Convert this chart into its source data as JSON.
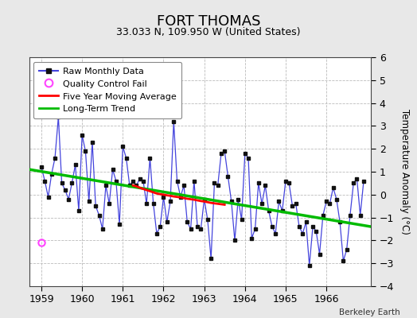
{
  "title": "FORT THOMAS",
  "subtitle": "33.033 N, 109.950 W (United States)",
  "ylabel": "Temperature Anomaly (°C)",
  "credit": "Berkeley Earth",
  "xlim": [
    1958.7,
    1967.1
  ],
  "ylim": [
    -4,
    6
  ],
  "yticks": [
    -4,
    -3,
    -2,
    -1,
    0,
    1,
    2,
    3,
    4,
    5,
    6
  ],
  "xticks": [
    1959,
    1960,
    1961,
    1962,
    1963,
    1964,
    1965,
    1966
  ],
  "bg_color": "#e8e8e8",
  "plot_bg": "#ffffff",
  "raw_color": "#4444dd",
  "raw_marker_color": "#111111",
  "moving_avg_color": "#ff0000",
  "trend_color": "#00bb00",
  "qc_fail_color": "#ff44ff",
  "raw_monthly_x": [
    1959.0,
    1959.083,
    1959.167,
    1959.25,
    1959.333,
    1959.417,
    1959.5,
    1959.583,
    1959.667,
    1959.75,
    1959.833,
    1959.917,
    1960.0,
    1960.083,
    1960.167,
    1960.25,
    1960.333,
    1960.417,
    1960.5,
    1960.583,
    1960.667,
    1960.75,
    1960.833,
    1960.917,
    1961.0,
    1961.083,
    1961.167,
    1961.25,
    1961.333,
    1961.417,
    1961.5,
    1961.583,
    1961.667,
    1961.75,
    1961.833,
    1961.917,
    1962.0,
    1962.083,
    1962.167,
    1962.25,
    1962.333,
    1962.417,
    1962.5,
    1962.583,
    1962.667,
    1962.75,
    1962.833,
    1962.917,
    1963.0,
    1963.083,
    1963.167,
    1963.25,
    1963.333,
    1963.417,
    1963.5,
    1963.583,
    1963.667,
    1963.75,
    1963.833,
    1963.917,
    1964.0,
    1964.083,
    1964.167,
    1964.25,
    1964.333,
    1964.417,
    1964.5,
    1964.583,
    1964.667,
    1964.75,
    1964.833,
    1964.917,
    1965.0,
    1965.083,
    1965.167,
    1965.25,
    1965.333,
    1965.417,
    1965.5,
    1965.583,
    1965.667,
    1965.75,
    1965.833,
    1965.917,
    1966.0,
    1966.083,
    1966.167,
    1966.25,
    1966.333,
    1966.417,
    1966.5,
    1966.583,
    1966.667,
    1966.75,
    1966.833,
    1966.917
  ],
  "raw_monthly_y": [
    1.2,
    0.6,
    -0.1,
    0.9,
    1.6,
    3.4,
    0.5,
    0.2,
    -0.2,
    0.5,
    1.3,
    -0.7,
    2.6,
    1.9,
    -0.3,
    2.3,
    -0.5,
    -0.9,
    -1.5,
    0.4,
    -0.4,
    1.1,
    0.6,
    -1.3,
    2.1,
    1.6,
    0.4,
    0.6,
    0.4,
    0.7,
    0.6,
    -0.4,
    1.6,
    -0.4,
    -1.7,
    -1.4,
    -0.1,
    -1.2,
    -0.3,
    3.2,
    0.6,
    -0.1,
    0.4,
    -1.2,
    -1.5,
    0.6,
    -1.4,
    -1.5,
    -0.2,
    -1.1,
    -2.8,
    0.5,
    0.4,
    1.8,
    1.9,
    0.8,
    -0.3,
    -2.0,
    -0.2,
    -1.1,
    1.8,
    1.6,
    -1.9,
    -1.5,
    0.5,
    -0.4,
    0.4,
    -0.7,
    -1.4,
    -1.7,
    -0.3,
    -0.7,
    0.6,
    0.5,
    -0.5,
    -0.4,
    -1.4,
    -1.7,
    -1.2,
    -3.1,
    -1.4,
    -1.6,
    -2.6,
    -0.9,
    -0.3,
    -0.4,
    0.3,
    -0.2,
    -1.2,
    -2.9,
    -2.4,
    -0.9,
    0.5,
    0.7,
    -0.9,
    0.6
  ],
  "qc_fail_x": [
    1959.0
  ],
  "qc_fail_y": [
    -2.1
  ],
  "moving_avg_x": [
    1961.25,
    1961.333,
    1961.417,
    1961.5,
    1961.583,
    1961.667,
    1961.75,
    1961.833,
    1961.917,
    1962.0,
    1962.083,
    1962.167,
    1962.25,
    1962.333,
    1962.417,
    1962.5,
    1962.583,
    1962.667,
    1962.75,
    1962.833,
    1962.917,
    1963.0,
    1963.083,
    1963.167,
    1963.25,
    1963.333,
    1963.417,
    1963.5
  ],
  "moving_avg_y": [
    0.4,
    0.36,
    0.3,
    0.25,
    0.2,
    0.15,
    0.1,
    0.05,
    0.02,
    0.0,
    -0.03,
    -0.05,
    -0.08,
    -0.1,
    -0.12,
    -0.15,
    -0.18,
    -0.2,
    -0.22,
    -0.25,
    -0.28,
    -0.3,
    -0.33,
    -0.36,
    -0.38,
    -0.4,
    -0.42,
    -0.44
  ],
  "trend_x": [
    1958.7,
    1967.1
  ],
  "trend_y": [
    1.1,
    -1.4
  ]
}
